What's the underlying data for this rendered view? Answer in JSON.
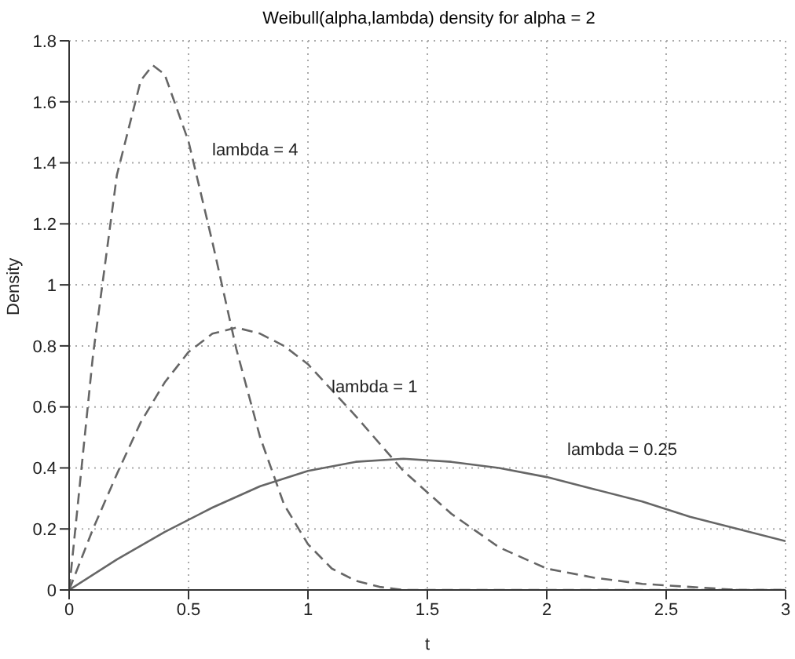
{
  "chart_data": {
    "type": "line",
    "title": "Weibull(alpha,lambda) density for alpha = 2",
    "xlabel": "t",
    "ylabel": "Density",
    "series": [
      {
        "color": "#666666",
        "line_style": "dashed",
        "x": [
          0,
          0.1,
          0.2,
          0.3,
          0.35,
          0.4,
          0.5,
          0.6,
          0.7,
          0.8,
          0.9,
          1.0,
          1.1,
          1.2,
          1.3,
          1.4,
          1.5,
          1.7,
          2.0,
          2.5,
          3.0
        ],
        "values": [
          0,
          0.77,
          1.36,
          1.67,
          1.72,
          1.69,
          1.47,
          1.14,
          0.79,
          0.5,
          0.28,
          0.15,
          0.07,
          0.03,
          0.01,
          0,
          0,
          0,
          0,
          0,
          0
        ]
      },
      {
        "color": "#666666",
        "line_style": "dashed",
        "x": [
          0,
          0.1,
          0.2,
          0.3,
          0.4,
          0.5,
          0.6,
          0.7,
          0.8,
          0.9,
          1.0,
          1.2,
          1.4,
          1.6,
          1.8,
          2.0,
          2.2,
          2.4,
          2.6,
          2.8,
          3.0
        ],
        "values": [
          0,
          0.2,
          0.38,
          0.55,
          0.68,
          0.78,
          0.84,
          0.86,
          0.84,
          0.8,
          0.74,
          0.57,
          0.39,
          0.25,
          0.14,
          0.07,
          0.04,
          0.02,
          0.01,
          0,
          0
        ]
      },
      {
        "color": "#666666",
        "line_style": "solid",
        "x": [
          0,
          0.2,
          0.4,
          0.6,
          0.8,
          1.0,
          1.2,
          1.4,
          1.6,
          1.8,
          2.0,
          2.2,
          2.4,
          2.6,
          2.8,
          3.0
        ],
        "values": [
          0,
          0.1,
          0.19,
          0.27,
          0.34,
          0.39,
          0.42,
          0.43,
          0.42,
          0.4,
          0.37,
          0.33,
          0.29,
          0.24,
          0.2,
          0.16
        ]
      }
    ],
    "annotations": [
      "lambda = 4",
      "lambda = 1",
      "lambda = 0.25"
    ],
    "xlim": [
      0,
      3
    ],
    "xticks": [
      0,
      0.5,
      1,
      1.5,
      2,
      2.5,
      3
    ],
    "ylim": [
      0,
      1.8
    ],
    "yticks": [
      0,
      0.2,
      0.4,
      0.6,
      0.8,
      1,
      1.2,
      1.4,
      1.6,
      1.8
    ],
    "grid": true
  }
}
